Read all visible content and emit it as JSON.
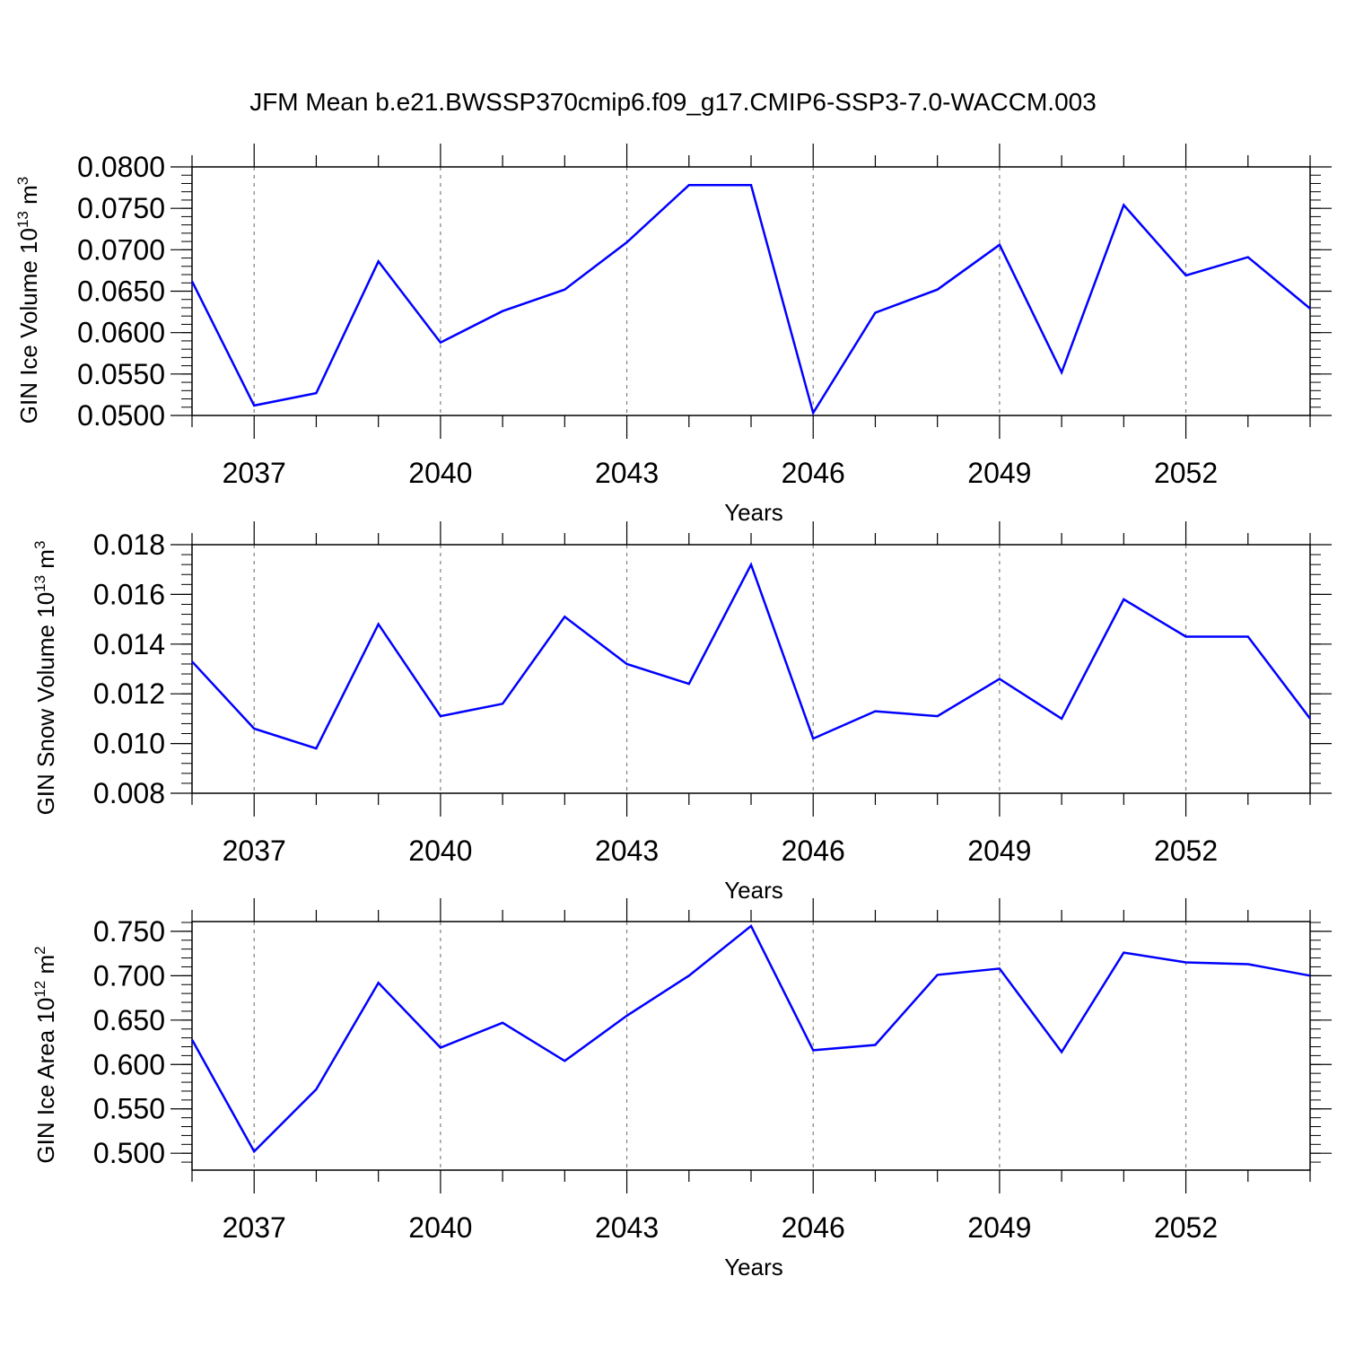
{
  "title": "JFM Mean b.e21.BWSSP370cmip6.f09_g17.CMIP6-SSP3-7.0-WACCM.003",
  "colors": {
    "line": "#0000ff",
    "axis": "#000000",
    "grid": "#808080"
  },
  "chart_data": [
    {
      "type": "line",
      "ylabel_main": "GIN Ice Volume 10",
      "ylabel_exp": "13",
      "ylabel_unit": " m",
      "ylabel_unit_exp": "3",
      "xlabel": "Years",
      "xlim": [
        2036,
        2054
      ],
      "ylim": [
        0.05,
        0.08
      ],
      "yticks": [
        "0.0500",
        "0.0550",
        "0.0600",
        "0.0650",
        "0.0700",
        "0.0750",
        "0.0800"
      ],
      "ytick_values": [
        0.05,
        0.055,
        0.06,
        0.065,
        0.07,
        0.075,
        0.08
      ],
      "ytick_minor_step": 0.001,
      "xticks": [
        "2037",
        "2040",
        "2043",
        "2046",
        "2049",
        "2052"
      ],
      "xtick_values": [
        2037,
        2040,
        2043,
        2046,
        2049,
        2052
      ],
      "x": [
        2036,
        2037,
        2038,
        2039,
        2040,
        2041,
        2042,
        2043,
        2044,
        2045,
        2046,
        2047,
        2048,
        2049,
        2050,
        2051,
        2052,
        2053,
        2054
      ],
      "series": [
        {
          "values": [
            0.0662,
            0.0512,
            0.0527,
            0.0686,
            0.0588,
            0.0626,
            0.0652,
            0.0709,
            0.0778,
            0.0778,
            0.0503,
            0.0624,
            0.0652,
            0.0706,
            0.0552,
            0.0754,
            0.0669,
            0.0691,
            0.0629
          ]
        }
      ],
      "grid": "vertical dashed at major x ticks"
    },
    {
      "type": "line",
      "ylabel_main": "GIN Snow Volume 10",
      "ylabel_exp": "13",
      "ylabel_unit": " m",
      "ylabel_unit_exp": "3",
      "xlabel": "Years",
      "xlim": [
        2036,
        2054
      ],
      "ylim": [
        0.008,
        0.018
      ],
      "yticks": [
        "0.008",
        "0.010",
        "0.012",
        "0.014",
        "0.016",
        "0.018"
      ],
      "ytick_values": [
        0.008,
        0.01,
        0.012,
        0.014,
        0.016,
        0.018
      ],
      "ytick_minor_step": 0.0004,
      "xticks": [
        "2037",
        "2040",
        "2043",
        "2046",
        "2049",
        "2052"
      ],
      "xtick_values": [
        2037,
        2040,
        2043,
        2046,
        2049,
        2052
      ],
      "x": [
        2036,
        2037,
        2038,
        2039,
        2040,
        2041,
        2042,
        2043,
        2044,
        2045,
        2046,
        2047,
        2048,
        2049,
        2050,
        2051,
        2052,
        2053,
        2054
      ],
      "series": [
        {
          "values": [
            0.0133,
            0.0106,
            0.0098,
            0.0148,
            0.0111,
            0.0116,
            0.0151,
            0.0132,
            0.0124,
            0.0172,
            0.0102,
            0.0113,
            0.0111,
            0.0126,
            0.011,
            0.0158,
            0.0143,
            0.0143,
            0.011
          ]
        }
      ],
      "grid": "vertical dashed at major x ticks"
    },
    {
      "type": "line",
      "ylabel_main": "GIN Ice Area 10",
      "ylabel_exp": "12",
      "ylabel_unit": " m",
      "ylabel_unit_exp": "2",
      "xlabel": "Years",
      "xlim": [
        2036,
        2054
      ],
      "ylim": [
        0.481,
        0.761
      ],
      "yticks": [
        "0.500",
        "0.550",
        "0.600",
        "0.650",
        "0.700",
        "0.750"
      ],
      "ytick_values": [
        0.5,
        0.55,
        0.6,
        0.65,
        0.7,
        0.75
      ],
      "ytick_minor_step": 0.01,
      "xticks": [
        "2037",
        "2040",
        "2043",
        "2046",
        "2049",
        "2052"
      ],
      "xtick_values": [
        2037,
        2040,
        2043,
        2046,
        2049,
        2052
      ],
      "x": [
        2036,
        2037,
        2038,
        2039,
        2040,
        2041,
        2042,
        2043,
        2044,
        2045,
        2046,
        2047,
        2048,
        2049,
        2050,
        2051,
        2052,
        2053,
        2054
      ],
      "series": [
        {
          "values": [
            0.628,
            0.502,
            0.572,
            0.692,
            0.619,
            0.647,
            0.604,
            0.655,
            0.7,
            0.756,
            0.616,
            0.622,
            0.701,
            0.708,
            0.614,
            0.726,
            0.715,
            0.713,
            0.7
          ]
        }
      ],
      "grid": "vertical dashed at major x ticks"
    }
  ]
}
